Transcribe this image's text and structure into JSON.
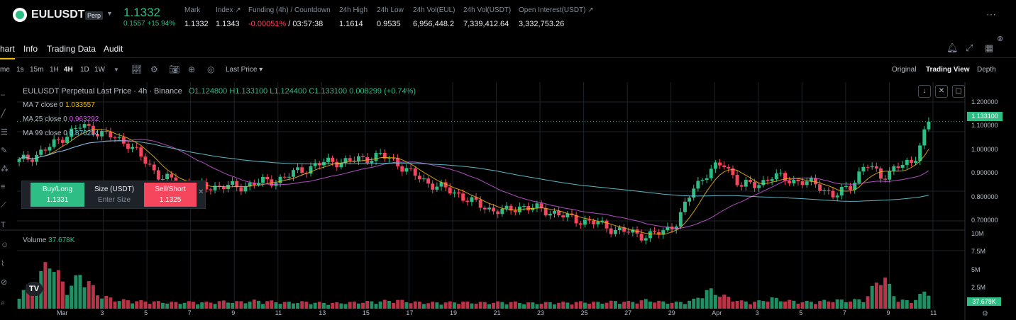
{
  "header": {
    "symbol": "EULUSDT",
    "badge": "Perp",
    "last_price": "1.1332",
    "change_abs": "0.1557",
    "change_pct": "+15.94%",
    "stats": [
      {
        "label": "Mark",
        "value": "1.1332"
      },
      {
        "label": "Index",
        "value": "1.1343"
      },
      {
        "label": "Funding (4h) / Countdown",
        "value_funding": "-0.00051%",
        "value_countdown": "/ 03:57:38"
      },
      {
        "label": "24h High",
        "value": "1.1614"
      },
      {
        "label": "24h Low",
        "value": "0.9535"
      },
      {
        "label": "24h Vol(EUL)",
        "value": "6,956,448.2"
      },
      {
        "label": "24h Vol(USDT)",
        "value": "7,339,412.64"
      },
      {
        "label": "Open Interest(USDT)",
        "value": "3,332,753.26"
      }
    ]
  },
  "tabs": [
    "hart",
    "Info",
    "Trading Data",
    "Audit"
  ],
  "toolbar": {
    "time_label": "me",
    "intervals": [
      "1s",
      "15m",
      "1H",
      "4H",
      "1D",
      "1W"
    ],
    "active_interval": "4H",
    "price_type": "Last Price",
    "views": [
      "Original",
      "Trading View",
      "Depth"
    ],
    "active_view": "Trading View"
  },
  "chart_info": {
    "title": "EULUSDT Perpetual Last Price · 4h · Binance",
    "ohlc": "O1.124800 H1.133100 L1.124400 C1.133100 0.008299 (+0.74%)",
    "ma": [
      {
        "label": "MA 7 close 0",
        "value": "1.033557",
        "color": "#f0b90b"
      },
      {
        "label": "MA 25 close 0",
        "value": "0.963292",
        "color": "#d05ce3"
      },
      {
        "label": "MA 99 close 0",
        "value": "0.876214",
        "color": "#6fd3e0"
      }
    ],
    "volume_label": "Volume",
    "volume_value": "37.678K",
    "last_price_tag": "1.133100",
    "volume_tag": "37.678K"
  },
  "trade_panel": {
    "buy_label": "Buy/Long",
    "buy_price": "1.1331",
    "size_label": "Size (USDT)",
    "size_placeholder": "Enter Size",
    "sell_label": "Sell/Short",
    "sell_price": "1.1325"
  },
  "chart_data": {
    "type": "candlestick",
    "price_axis": [
      "1.200000",
      "1.100000",
      "1.000000",
      "0.900000",
      "0.800000",
      "0.700000"
    ],
    "volume_axis": [
      "10M",
      "7.5M",
      "5M",
      "2.5M"
    ],
    "date_labels": [
      "Mar",
      "3",
      "5",
      "7",
      "9",
      "11",
      "13",
      "15",
      "17",
      "19",
      "21",
      "23",
      "25",
      "27",
      "29",
      "Apr",
      "3",
      "5",
      "7",
      "9",
      "11"
    ],
    "price_ylim": [
      0.7,
      1.2
    ],
    "close_path": [
      1.0,
      1.02,
      1.05,
      1.09,
      1.12,
      1.1,
      1.08,
      1.06,
      1.0,
      0.95,
      0.93,
      0.92,
      0.91,
      0.92,
      0.91,
      0.93,
      0.93,
      0.95,
      0.97,
      0.99,
      1.0,
      1.0,
      1.01,
      1.02,
      1.0,
      0.96,
      0.93,
      0.91,
      0.89,
      0.86,
      0.84,
      0.83,
      0.85,
      0.84,
      0.83,
      0.81,
      0.8,
      0.79,
      0.77,
      0.76,
      0.75,
      0.76,
      0.8,
      0.91,
      0.97,
      0.99,
      0.92,
      0.92,
      0.95,
      0.94,
      0.93,
      0.92,
      0.88,
      0.92,
      0.99,
      0.95,
      0.98,
      1.0,
      1.13
    ],
    "volume_path": [
      2.6,
      4.1,
      8.2,
      3.0,
      5.9,
      2.4,
      1.5,
      1.3,
      1.2,
      1.1,
      1.0,
      1.1,
      1.0,
      1.2,
      1.1,
      1.3,
      1.2,
      1.0,
      1.1,
      1.0,
      0.9,
      1.0,
      1.1,
      1.2,
      1.4,
      1.1,
      1.0,
      1.0,
      1.1,
      1.0,
      1.0,
      1.1,
      1.0,
      0.9,
      1.0,
      1.0,
      1.1,
      1.0,
      1.2,
      1.1,
      1.4,
      1.1,
      1.0,
      1.4,
      3.1,
      2.0,
      1.2,
      1.1,
      1.7,
      1.3,
      1.1,
      1.2,
      1.4,
      1.3,
      1.6,
      5.8,
      1.4,
      1.2,
      3.3
    ]
  }
}
